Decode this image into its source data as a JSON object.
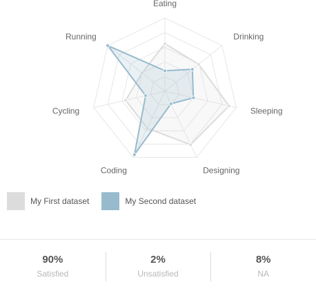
{
  "chart_data": {
    "type": "radar",
    "categories": [
      "Eating",
      "Drinking",
      "Sleeping",
      "Designing",
      "Coding",
      "Cycling",
      "Running"
    ],
    "series": [
      {
        "name": "My First dataset",
        "values": [
          65,
          59,
          90,
          81,
          56,
          55,
          40
        ]
      },
      {
        "name": "My Second dataset",
        "values": [
          28,
          48,
          40,
          19,
          96,
          27,
          100
        ]
      }
    ],
    "rlim": [
      0,
      100
    ],
    "grid": true,
    "legend_position": "bottom-left"
  },
  "colors": {
    "first_fill": "rgba(220,220,220,0.2)",
    "first_stroke": "#dcdcdc",
    "first_point": "#dcdcdc",
    "first_swatch": "#dcdcdc",
    "second_fill": "rgba(151,187,205,0.2)",
    "second_stroke": "#97bbcd",
    "second_point": "#97bbcd",
    "second_swatch": "#97bbcd",
    "grid": "#e6e6e6"
  },
  "legend": {
    "first_label": "My First dataset",
    "second_label": "My Second dataset"
  },
  "stats": [
    {
      "value": "90%",
      "label": "Satisfied"
    },
    {
      "value": "2%",
      "label": "Unsatisfied"
    },
    {
      "value": "8%",
      "label": "NA"
    }
  ]
}
